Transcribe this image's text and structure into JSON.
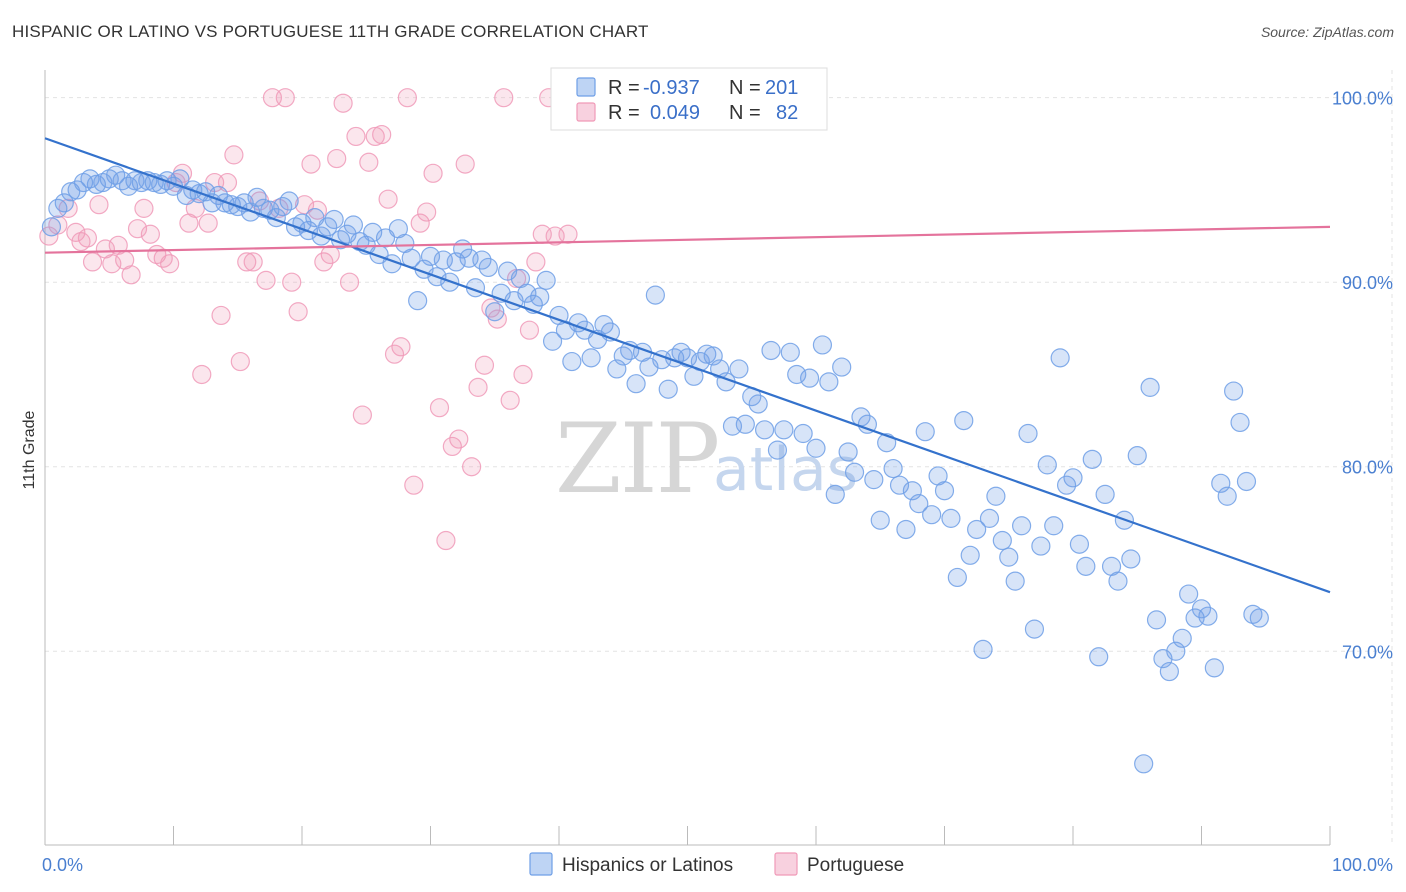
{
  "title": "HISPANIC OR LATINO VS PORTUGUESE 11TH GRADE CORRELATION CHART",
  "source": "Source: ZipAtlas.com",
  "watermark": {
    "zip": "ZIP",
    "atlas": "atlas"
  },
  "chart_data": {
    "type": "scatter",
    "title": "HISPANIC OR LATINO VS PORTUGUESE 11TH GRADE CORRELATION CHART",
    "xlabel": "",
    "ylabel": "11th Grade",
    "xlim": [
      0,
      100
    ],
    "ylim": [
      59.5,
      101.5
    ],
    "x_tick_labels": [
      {
        "value": 0,
        "label": "0.0%"
      },
      {
        "value": 100,
        "label": "100.0%"
      }
    ],
    "y_ticks": [
      {
        "value": 100,
        "label": "100.0%"
      },
      {
        "value": 90,
        "label": "90.0%"
      },
      {
        "value": 80,
        "label": "80.0%"
      },
      {
        "value": 70,
        "label": "70.0%"
      }
    ],
    "grid": true,
    "legend": {
      "position": "top-center",
      "entries": [
        {
          "r_label": "R =",
          "r_value": "-0.937",
          "n_label": "N =",
          "n_value": "201",
          "color": "#6f9fe6"
        },
        {
          "r_label": "R =",
          "r_value": "0.049",
          "n_label": "N =",
          "n_value": "82",
          "color": "#f09ab8"
        }
      ]
    },
    "bottom_legend": [
      "Hispanics or Latinos",
      "Portuguese"
    ],
    "series": [
      {
        "name": "Hispanics or Latinos",
        "color": "#6f9fe6",
        "trend": {
          "x0": 0,
          "y0": 97.8,
          "x1": 100,
          "y1": 73.2
        },
        "points": [
          [
            0.5,
            93.0
          ],
          [
            1.0,
            94.0
          ],
          [
            1.5,
            94.3
          ],
          [
            2.0,
            94.9
          ],
          [
            2.5,
            95.0
          ],
          [
            3.0,
            95.4
          ],
          [
            3.5,
            95.6
          ],
          [
            4.0,
            95.3
          ],
          [
            4.5,
            95.4
          ],
          [
            5.0,
            95.6
          ],
          [
            5.5,
            95.8
          ],
          [
            6.0,
            95.5
          ],
          [
            6.5,
            95.2
          ],
          [
            7.0,
            95.5
          ],
          [
            7.5,
            95.4
          ],
          [
            8.0,
            95.5
          ],
          [
            8.5,
            95.4
          ],
          [
            9.0,
            95.3
          ],
          [
            9.5,
            95.5
          ],
          [
            10.0,
            95.2
          ],
          [
            10.5,
            95.6
          ],
          [
            11.0,
            94.7
          ],
          [
            11.5,
            95.0
          ],
          [
            12.0,
            94.8
          ],
          [
            12.5,
            94.9
          ],
          [
            13.0,
            94.3
          ],
          [
            13.5,
            94.7
          ],
          [
            14.0,
            94.3
          ],
          [
            14.5,
            94.2
          ],
          [
            15.0,
            94.1
          ],
          [
            15.5,
            94.3
          ],
          [
            16.0,
            93.8
          ],
          [
            16.5,
            94.6
          ],
          [
            17.0,
            94.0
          ],
          [
            17.5,
            93.9
          ],
          [
            18.0,
            93.5
          ],
          [
            18.5,
            94.1
          ],
          [
            19.0,
            94.4
          ],
          [
            19.5,
            93.0
          ],
          [
            20.0,
            93.2
          ],
          [
            20.5,
            92.8
          ],
          [
            21.0,
            93.5
          ],
          [
            21.5,
            92.5
          ],
          [
            22.0,
            93.0
          ],
          [
            22.5,
            93.4
          ],
          [
            23.0,
            92.3
          ],
          [
            23.5,
            92.6
          ],
          [
            24.0,
            93.1
          ],
          [
            24.5,
            92.2
          ],
          [
            25.0,
            92.0
          ],
          [
            25.5,
            92.7
          ],
          [
            26.0,
            91.5
          ],
          [
            26.5,
            92.4
          ],
          [
            27.0,
            91.0
          ],
          [
            27.5,
            92.9
          ],
          [
            28.0,
            92.1
          ],
          [
            28.5,
            91.3
          ],
          [
            29.0,
            89.0
          ],
          [
            29.5,
            90.7
          ],
          [
            30.0,
            91.4
          ],
          [
            30.5,
            90.3
          ],
          [
            31.0,
            91.2
          ],
          [
            31.5,
            90.0
          ],
          [
            32.0,
            91.1
          ],
          [
            32.5,
            91.8
          ],
          [
            33.0,
            91.3
          ],
          [
            33.5,
            89.7
          ],
          [
            34.0,
            91.2
          ],
          [
            34.5,
            90.8
          ],
          [
            35.0,
            88.4
          ],
          [
            35.5,
            89.4
          ],
          [
            36.0,
            90.6
          ],
          [
            36.5,
            89.0
          ],
          [
            37.0,
            90.2
          ],
          [
            37.5,
            89.4
          ],
          [
            38.0,
            88.8
          ],
          [
            38.5,
            89.2
          ],
          [
            39.0,
            90.1
          ],
          [
            39.5,
            86.8
          ],
          [
            40.0,
            88.2
          ],
          [
            40.5,
            87.4
          ],
          [
            41.0,
            85.7
          ],
          [
            41.5,
            87.8
          ],
          [
            42.0,
            87.4
          ],
          [
            42.5,
            85.9
          ],
          [
            43.0,
            86.9
          ],
          [
            43.5,
            87.7
          ],
          [
            44.0,
            87.3
          ],
          [
            44.5,
            85.3
          ],
          [
            45.0,
            86.0
          ],
          [
            45.5,
            86.3
          ],
          [
            46.0,
            84.5
          ],
          [
            46.5,
            86.2
          ],
          [
            47.0,
            85.4
          ],
          [
            47.5,
            89.3
          ],
          [
            48.0,
            85.8
          ],
          [
            48.5,
            84.2
          ],
          [
            49.0,
            85.9
          ],
          [
            49.5,
            86.2
          ],
          [
            50.0,
            85.9
          ],
          [
            50.5,
            84.9
          ],
          [
            51.0,
            85.7
          ],
          [
            51.5,
            86.1
          ],
          [
            52.0,
            86.0
          ],
          [
            52.5,
            85.3
          ],
          [
            53.0,
            84.6
          ],
          [
            53.5,
            82.2
          ],
          [
            54.0,
            85.3
          ],
          [
            54.5,
            82.3
          ],
          [
            55.0,
            83.8
          ],
          [
            55.5,
            83.4
          ],
          [
            56.0,
            82.0
          ],
          [
            56.5,
            86.3
          ],
          [
            57.0,
            80.9
          ],
          [
            57.5,
            82.0
          ],
          [
            58.0,
            86.2
          ],
          [
            58.5,
            85.0
          ],
          [
            59.0,
            81.8
          ],
          [
            59.5,
            84.8
          ],
          [
            60.0,
            81.0
          ],
          [
            60.5,
            86.6
          ],
          [
            61.0,
            84.6
          ],
          [
            61.5,
            78.5
          ],
          [
            62.0,
            85.4
          ],
          [
            62.5,
            80.8
          ],
          [
            63.0,
            79.7
          ],
          [
            63.5,
            82.7
          ],
          [
            64.0,
            82.3
          ],
          [
            64.5,
            79.3
          ],
          [
            65.0,
            77.1
          ],
          [
            65.5,
            81.3
          ],
          [
            66.0,
            79.9
          ],
          [
            66.5,
            79.0
          ],
          [
            67.0,
            76.6
          ],
          [
            67.5,
            78.7
          ],
          [
            68.0,
            78.0
          ],
          [
            68.5,
            81.9
          ],
          [
            69.0,
            77.4
          ],
          [
            69.5,
            79.5
          ],
          [
            70.0,
            78.7
          ],
          [
            70.5,
            77.2
          ],
          [
            71.0,
            74.0
          ],
          [
            71.5,
            82.5
          ],
          [
            72.0,
            75.2
          ],
          [
            72.5,
            76.6
          ],
          [
            73.0,
            70.1
          ],
          [
            73.5,
            77.2
          ],
          [
            74.0,
            78.4
          ],
          [
            74.5,
            76.0
          ],
          [
            75.0,
            75.1
          ],
          [
            75.5,
            73.8
          ],
          [
            76.0,
            76.8
          ],
          [
            76.5,
            81.8
          ],
          [
            77.0,
            71.2
          ],
          [
            77.5,
            75.7
          ],
          [
            78.0,
            80.1
          ],
          [
            78.5,
            76.8
          ],
          [
            79.0,
            85.9
          ],
          [
            79.5,
            79.0
          ],
          [
            80.0,
            79.4
          ],
          [
            80.5,
            75.8
          ],
          [
            81.0,
            74.6
          ],
          [
            81.5,
            80.4
          ],
          [
            82.0,
            69.7
          ],
          [
            82.5,
            78.5
          ],
          [
            83.0,
            74.6
          ],
          [
            83.5,
            73.8
          ],
          [
            84.0,
            77.1
          ],
          [
            84.5,
            75.0
          ],
          [
            85.0,
            80.6
          ],
          [
            85.5,
            63.9
          ],
          [
            86.0,
            84.3
          ],
          [
            86.5,
            71.7
          ],
          [
            87.0,
            69.6
          ],
          [
            87.5,
            68.9
          ],
          [
            88.0,
            70.0
          ],
          [
            88.5,
            70.7
          ],
          [
            89.0,
            73.1
          ],
          [
            89.5,
            71.8
          ],
          [
            90.0,
            72.3
          ],
          [
            90.5,
            71.9
          ],
          [
            91.0,
            69.1
          ],
          [
            91.5,
            79.1
          ],
          [
            92.0,
            78.4
          ],
          [
            92.5,
            84.1
          ],
          [
            93.0,
            82.4
          ],
          [
            93.5,
            79.2
          ],
          [
            94.0,
            72.0
          ],
          [
            94.5,
            71.8
          ]
        ]
      },
      {
        "name": "Portuguese",
        "color": "#f09ab8",
        "trend": {
          "x0": 0,
          "y0": 91.6,
          "x1": 100,
          "y1": 93.0
        },
        "points": [
          [
            0.3,
            92.5
          ],
          [
            1.0,
            93.1
          ],
          [
            1.8,
            94.0
          ],
          [
            2.4,
            92.7
          ],
          [
            2.8,
            92.2
          ],
          [
            3.3,
            92.4
          ],
          [
            3.7,
            91.1
          ],
          [
            4.2,
            94.2
          ],
          [
            4.7,
            91.8
          ],
          [
            5.2,
            91.0
          ],
          [
            5.7,
            92.0
          ],
          [
            6.2,
            91.2
          ],
          [
            6.7,
            90.4
          ],
          [
            7.2,
            92.9
          ],
          [
            7.7,
            94.0
          ],
          [
            8.2,
            92.6
          ],
          [
            8.7,
            91.5
          ],
          [
            9.2,
            91.3
          ],
          [
            9.7,
            91.0
          ],
          [
            10.2,
            95.4
          ],
          [
            10.7,
            95.9
          ],
          [
            11.2,
            93.2
          ],
          [
            11.7,
            94.0
          ],
          [
            12.2,
            85.0
          ],
          [
            12.7,
            93.2
          ],
          [
            13.2,
            95.4
          ],
          [
            13.7,
            88.2
          ],
          [
            14.2,
            95.4
          ],
          [
            14.7,
            96.9
          ],
          [
            15.2,
            85.7
          ],
          [
            15.7,
            91.1
          ],
          [
            16.2,
            91.1
          ],
          [
            16.7,
            94.4
          ],
          [
            17.2,
            90.1
          ],
          [
            17.7,
            100.0
          ],
          [
            18.2,
            94.0
          ],
          [
            18.7,
            100.0
          ],
          [
            19.2,
            90.0
          ],
          [
            19.7,
            88.4
          ],
          [
            20.2,
            94.2
          ],
          [
            20.7,
            96.4
          ],
          [
            21.2,
            93.9
          ],
          [
            21.7,
            91.1
          ],
          [
            22.2,
            91.5
          ],
          [
            22.7,
            96.7
          ],
          [
            23.2,
            99.7
          ],
          [
            23.7,
            90.0
          ],
          [
            24.2,
            97.9
          ],
          [
            24.7,
            82.8
          ],
          [
            25.2,
            96.5
          ],
          [
            25.7,
            97.9
          ],
          [
            26.2,
            98.0
          ],
          [
            26.7,
            94.5
          ],
          [
            27.2,
            86.1
          ],
          [
            27.7,
            86.5
          ],
          [
            28.2,
            100.0
          ],
          [
            28.7,
            79.0
          ],
          [
            29.2,
            93.2
          ],
          [
            29.7,
            93.8
          ],
          [
            30.2,
            95.9
          ],
          [
            30.7,
            83.2
          ],
          [
            31.2,
            76.0
          ],
          [
            31.7,
            81.1
          ],
          [
            32.2,
            81.5
          ],
          [
            32.7,
            96.4
          ],
          [
            33.2,
            80.0
          ],
          [
            33.7,
            84.3
          ],
          [
            34.2,
            85.5
          ],
          [
            34.7,
            88.6
          ],
          [
            35.2,
            88.0
          ],
          [
            35.7,
            100.0
          ],
          [
            36.2,
            83.6
          ],
          [
            36.7,
            90.2
          ],
          [
            37.2,
            85.0
          ],
          [
            37.7,
            87.4
          ],
          [
            38.2,
            91.1
          ],
          [
            38.7,
            92.6
          ],
          [
            39.2,
            100.0
          ],
          [
            39.7,
            92.5
          ],
          [
            40.2,
            100.0
          ],
          [
            40.7,
            92.6
          ],
          [
            41.2,
            100.0
          ]
        ]
      }
    ]
  }
}
